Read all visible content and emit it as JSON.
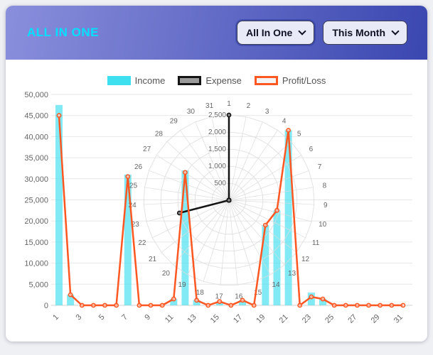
{
  "header": {
    "title": "ALL IN ONE",
    "filter_dropdown": {
      "label": "All In One"
    },
    "period_dropdown": {
      "label": "This Month"
    }
  },
  "legend": {
    "income": "Income",
    "expense": "Expense",
    "profit": "Profit/Loss"
  },
  "colors": {
    "income": "#3edfee",
    "expense": "#141414",
    "profit": "#ff5722",
    "title": "#00e0ff",
    "header_start": "#8a8fdc",
    "header_end": "#3a47b0"
  },
  "chart_data": [
    {
      "type": "bar",
      "name": "Income",
      "x": [
        1,
        2,
        3,
        4,
        5,
        6,
        7,
        8,
        9,
        10,
        11,
        12,
        13,
        14,
        15,
        16,
        17,
        18,
        19,
        20,
        21,
        22,
        23,
        24,
        25,
        26,
        27,
        28,
        29,
        30,
        31
      ],
      "x_tick_labels": [
        "1",
        "3",
        "5",
        "7",
        "9",
        "11",
        "13",
        "15",
        "17",
        "19",
        "21",
        "23",
        "25",
        "27",
        "29",
        "31"
      ],
      "values": [
        47500,
        2500,
        0,
        0,
        0,
        0,
        31000,
        0,
        0,
        0,
        1500,
        32000,
        1200,
        0,
        900,
        0,
        1200,
        0,
        19000,
        22500,
        41500,
        0,
        3000,
        1500,
        0,
        0,
        0,
        0,
        0,
        0,
        0
      ],
      "ylim": [
        0,
        50000
      ],
      "y_tick_labels": [
        "0",
        "5,000",
        "10,000",
        "15,000",
        "20,000",
        "25,000",
        "30,000",
        "35,000",
        "40,000",
        "45,000",
        "50,000"
      ],
      "grid": true,
      "legend_position": "top"
    },
    {
      "type": "line",
      "name": "Profit/Loss",
      "x": [
        1,
        2,
        3,
        4,
        5,
        6,
        7,
        8,
        9,
        10,
        11,
        12,
        13,
        14,
        15,
        16,
        17,
        18,
        19,
        20,
        21,
        22,
        23,
        24,
        25,
        26,
        27,
        28,
        29,
        30,
        31
      ],
      "values": [
        45000,
        2500,
        0,
        0,
        0,
        0,
        30500,
        0,
        0,
        0,
        1500,
        31500,
        1200,
        0,
        900,
        0,
        1200,
        0,
        19000,
        22500,
        41500,
        0,
        2000,
        1500,
        0,
        0,
        0,
        0,
        0,
        0,
        0
      ]
    },
    {
      "type": "radar",
      "name": "Expense",
      "angular_labels": [
        "1",
        "2",
        "3",
        "4",
        "5",
        "6",
        "7",
        "8",
        "9",
        "10",
        "11",
        "12",
        "13",
        "14",
        "15",
        "16",
        "17",
        "18",
        "19",
        "20",
        "21",
        "22",
        "23",
        "24",
        "25",
        "26",
        "27",
        "28",
        "29",
        "30",
        "31"
      ],
      "r_ticks": [
        500,
        1000,
        1500,
        2000,
        2500
      ],
      "r_tick_labels": [
        "500",
        "1,000",
        "1,500",
        "2,000",
        "2,500"
      ],
      "rmax": 2500,
      "values": [
        2500,
        0,
        0,
        0,
        0,
        0,
        0,
        0,
        0,
        0,
        0,
        0,
        0,
        0,
        0,
        0,
        0,
        0,
        0,
        0,
        0,
        0,
        1500,
        0,
        0,
        0,
        0,
        0,
        0,
        0,
        0
      ]
    }
  ]
}
